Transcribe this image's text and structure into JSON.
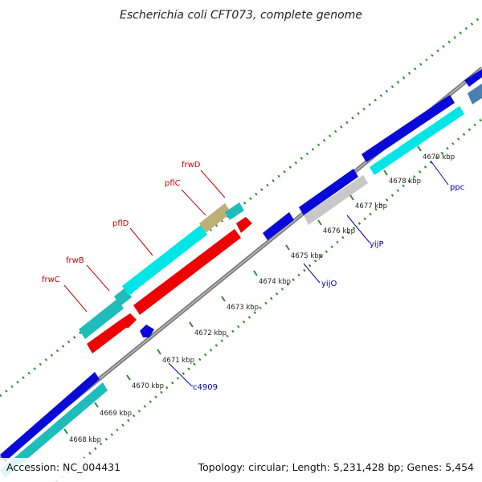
{
  "title": "Escherichia coli CFT073, complete genome",
  "accession": "Accession: NC_004431",
  "topology": "Topology: circular; Length: 5,231,428 bp; Genes: 5,454",
  "ticks": [
    {
      "label": "4668 kbp"
    },
    {
      "label": "4669 kbp"
    },
    {
      "label": "4670 kbp"
    },
    {
      "label": "4671 kbp"
    },
    {
      "label": "4672 kbp"
    },
    {
      "label": "4673 kbp"
    },
    {
      "label": "4674 kbp"
    },
    {
      "label": "4675 kbp"
    },
    {
      "label": "4676 kbp"
    },
    {
      "label": "4677 kbp"
    },
    {
      "label": "4678 kbp"
    },
    {
      "label": "4679 kbp"
    }
  ],
  "gene_labels": {
    "frwC": "frwC",
    "frwB": "frwB",
    "pflD": "pflD",
    "pflC": "pflC",
    "frwD": "frwD",
    "c4909": "c4909",
    "yijO": "yijO",
    "yijP": "yijP",
    "ppc": "ppc"
  },
  "colors": {
    "backbone": "#7a7a7a",
    "dots": "#2e8b2e",
    "cds_blue": "#0a0ad8",
    "cds_cyan": "#00d2d2",
    "cds_teal": "#1fbcbc",
    "cds_red": "#ee0000",
    "cds_olive": "#bdb076",
    "cds_grey": "#c8c8c8",
    "cds_steel": "#4a7fb0",
    "label_red": "#cc0000",
    "label_blue": "#0000aa"
  }
}
